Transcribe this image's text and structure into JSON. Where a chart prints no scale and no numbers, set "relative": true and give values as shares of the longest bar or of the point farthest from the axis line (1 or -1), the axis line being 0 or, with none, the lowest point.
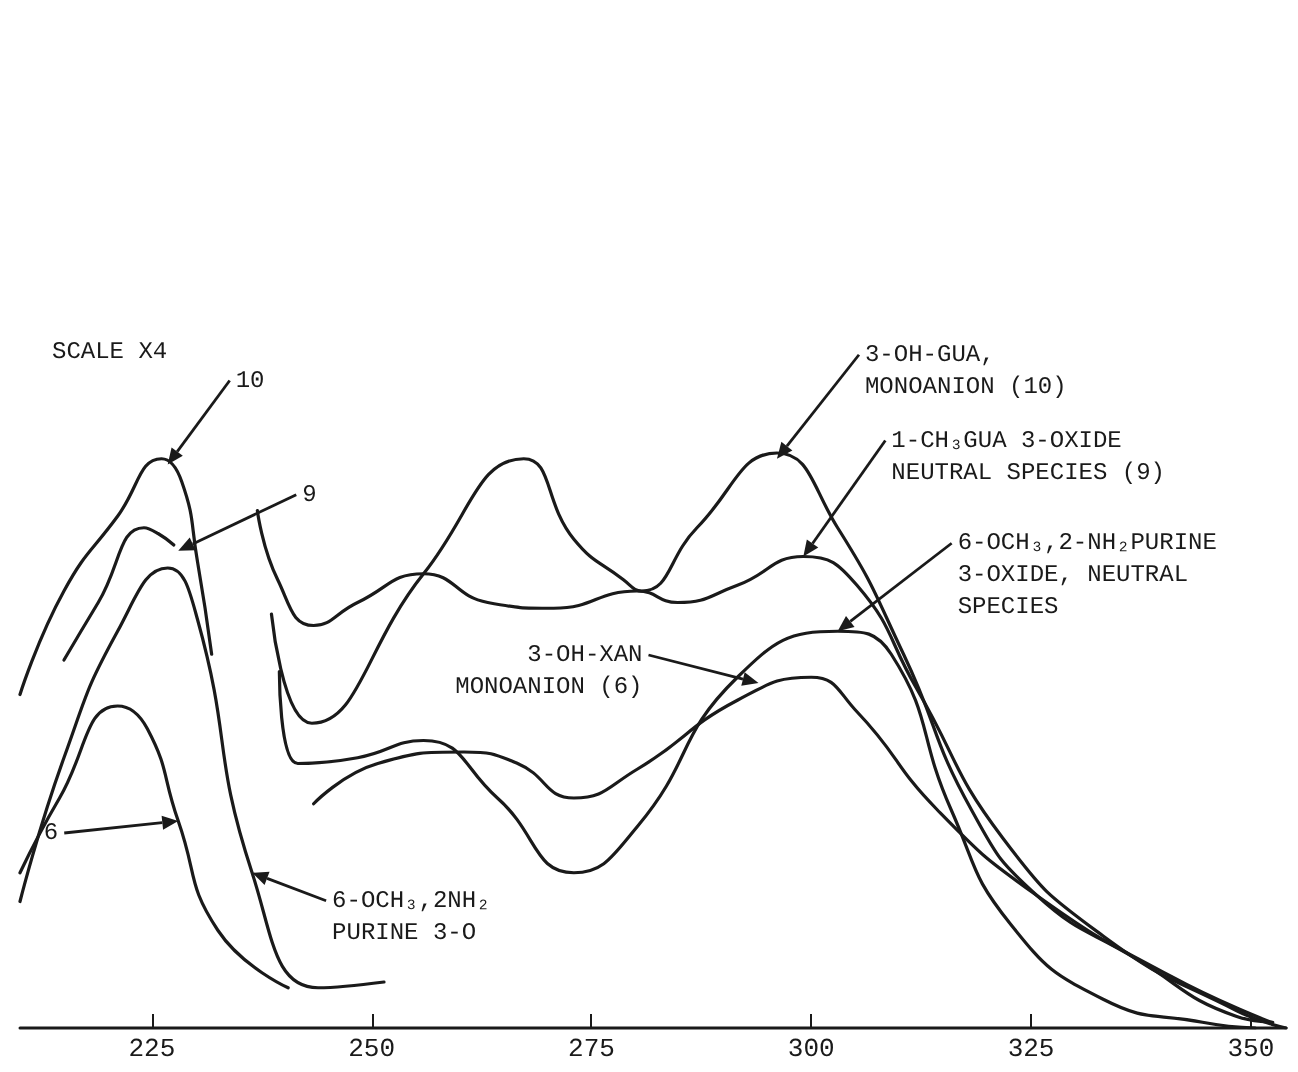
{
  "chart_data": {
    "type": "line",
    "relative": true,
    "xlim": [
      210,
      354
    ],
    "xticks": [
      225,
      250,
      275,
      300,
      325,
      350
    ],
    "grid": false,
    "marker": "none",
    "line_style": "solid",
    "series": [
      {
        "color": "#1a1a1a",
        "x": [
          210,
          215,
          221.1,
          226.1,
          228.4,
          230.2,
          231.8
        ],
        "values": [
          0.58,
          0.76,
          0.89,
          0.99,
          0.95,
          0.81,
          0.65
        ]
      },
      {
        "color": "#1a1a1a",
        "x": [
          238.6,
          243.2,
          255.9,
          267.3,
          273.0,
          278.6,
          280.7,
          287.0,
          296.1,
          303.0,
          310.5,
          318.2,
          325.7,
          337.0,
          348.4,
          352.5
        ],
        "values": [
          0.72,
          0.53,
          0.79,
          0.99,
          0.85,
          0.78,
          0.76,
          0.87,
          1.0,
          0.87,
          0.65,
          0.38,
          0.23,
          0.12,
          0.02,
          0.01
        ]
      },
      {
        "color": "#1a1a1a",
        "x": [
          215,
          218.9,
          224.1,
          225.7,
          227.5
        ],
        "values": [
          0.64,
          0.74,
          0.87,
          0.86,
          0.84
        ]
      },
      {
        "color": "#1a1a1a",
        "x": [
          237.0,
          239.3,
          243.4,
          248.4,
          255.9,
          263.2,
          270.7,
          280.2,
          284.8,
          291.6,
          299.1,
          305.2,
          312.0,
          321.8,
          333.2,
          348.4,
          354
        ],
        "values": [
          0.9,
          0.78,
          0.7,
          0.74,
          0.79,
          0.74,
          0.73,
          0.76,
          0.74,
          0.77,
          0.82,
          0.77,
          0.59,
          0.33,
          0.16,
          0.03,
          0
        ]
      },
      {
        "color": "#1a1a1a",
        "x": [
          210,
          215,
          221.1,
          226.8,
          230.2,
          236.4,
          243.9,
          251.4
        ],
        "values": [
          0.22,
          0.47,
          0.69,
          0.8,
          0.71,
          0.27,
          0.07,
          0.08
        ]
      },
      {
        "color": "#1a1a1a",
        "x": [
          239.5,
          241.6,
          248.4,
          255.9,
          264.3,
          273.0,
          280.2,
          291.6,
          303.0,
          309.1,
          315.9,
          322.7,
          333.2,
          344.5,
          350.5
        ],
        "values": [
          0.62,
          0.46,
          0.47,
          0.5,
          0.4,
          0.27,
          0.35,
          0.61,
          0.69,
          0.65,
          0.38,
          0.18,
          0.05,
          0.01,
          0
        ]
      },
      {
        "color": "#1a1a1a",
        "x": [
          210,
          214.5,
          221.1,
          224.5,
          228.0,
          232.5,
          240.5
        ],
        "values": [
          0.27,
          0.4,
          0.56,
          0.52,
          0.36,
          0.17,
          0.07
        ]
      },
      {
        "color": "#1a1a1a",
        "x": [
          243.4,
          250.7,
          260.5,
          266.6,
          273.0,
          280.2,
          291.6,
          300.0,
          305.2,
          314.3,
          325.7,
          340.9,
          352.3
        ],
        "values": [
          0.39,
          0.46,
          0.48,
          0.46,
          0.4,
          0.45,
          0.57,
          0.61,
          0.55,
          0.38,
          0.23,
          0.09,
          0.01
        ]
      }
    ],
    "annotations": [
      "SCALE X4",
      {
        "text": "10",
        "x": 226.8,
        "y": 0.98
      },
      {
        "text": "9",
        "x": 228.0,
        "y": 0.83
      },
      {
        "text": "6",
        "x": 228.0,
        "y": 0.36
      },
      {
        "text": "6-OCH₃,2NH₂\nPURINE 3-O",
        "x": 236.4,
        "y": 0.27
      },
      {
        "text": "3-OH-GUA,\nMONOANION (10)",
        "x": 296.1,
        "y": 0.99
      },
      {
        "text": "1-CH₃GUA 3-OXIDE\nNEUTRAL SPECIES (9)",
        "x": 299.1,
        "y": 0.82
      },
      {
        "text": "6-OCH₃,2-NH₂PURINE\n3-OXIDE, NEUTRAL\nSPECIES",
        "x": 303.0,
        "y": 0.69
      },
      {
        "text": "3-OH-XAN\nMONOANION (6)",
        "x": 294.0,
        "y": 0.6
      }
    ]
  }
}
